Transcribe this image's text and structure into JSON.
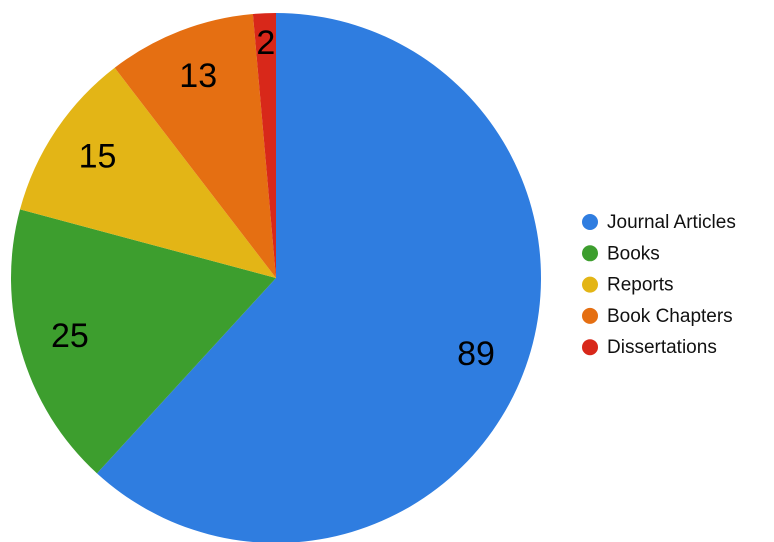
{
  "chart_data": {
    "type": "pie",
    "categories": [
      "Journal Articles",
      "Books",
      "Reports",
      "Book Chapters",
      "Dissertations"
    ],
    "values": [
      89,
      25,
      15,
      13,
      2
    ],
    "colors": [
      "#2f7de0",
      "#3d9e2e",
      "#e3b516",
      "#e56f12",
      "#d8281a"
    ],
    "legend": "right"
  }
}
